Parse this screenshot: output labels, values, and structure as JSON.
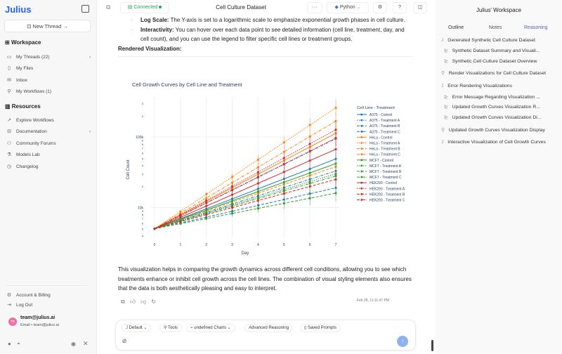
{
  "sidebar": {
    "logo": "Julius",
    "new_thread": "New Thread →",
    "workspace_heading": "Workspace",
    "workspace_items": [
      {
        "label": "My Threads (22)",
        "icon": "chat-icon"
      },
      {
        "label": "My Files",
        "icon": "file-icon"
      },
      {
        "label": "Inbox",
        "icon": "inbox-icon"
      },
      {
        "label": "My Workflows (1)",
        "icon": "workflow-icon"
      }
    ],
    "resources_heading": "Resources",
    "resource_items": [
      {
        "label": "Explore Workflows",
        "icon": "trend-icon"
      },
      {
        "label": "Documentation",
        "icon": "book-icon"
      },
      {
        "label": "Community Forums",
        "icon": "users-icon"
      },
      {
        "label": "Models Lab",
        "icon": "flask-icon"
      },
      {
        "label": "Changelog",
        "icon": "history-icon"
      }
    ],
    "account": "Account & Billing",
    "logout": "Log Out",
    "user_name": "team@julius.ai",
    "user_sub": "Email • team@julius.ai",
    "avatar_initials": "TE",
    "avatar_color": "#f06fa8"
  },
  "topbar": {
    "status": "Connected",
    "status_color": "#22a559",
    "title": "Cell Culture Dataset",
    "more": "···",
    "language": "Python"
  },
  "message": {
    "bullet1_bold": "Log Scale:",
    "bullet1_text": " The Y-axis is set to a logarithmic scale to emphasize exponential growth phases in cell culture.",
    "bullet2_bold": "Interactivity:",
    "bullet2_text": " You can hover over each data point to see detailed information (cell line, treatment, day, and cell count), and you can use the legend to filter specific cell lines or treatment groups.",
    "rendered_heading": "Rendered Visualization:",
    "summary": "This visualization helps in comparing the growth dynamics across different cell conditions, allowing you to see which treatments enhance or inhibit cell growth across the cell lines. The combination of visual styling elements also ensures that the data is both aesthetically pleasing and easy to interpret.",
    "timestamp": "Feb 28, 11:11:47 PM"
  },
  "composer": {
    "default": "Default",
    "tools": "Tools",
    "charts": "undefined Charts",
    "reasoning": "Advanced Reasoning",
    "saved": "Saved Prompts",
    "send_color": "#8fb0f5"
  },
  "right_panel": {
    "title": "Julius' Workspace",
    "tabs": [
      "Outline",
      "Notes",
      "Reasoning"
    ],
    "items": [
      {
        "label": "Generated Synthetic Cell Culture Dataset",
        "level": 0
      },
      {
        "label": "Synthetic Dataset Summary and Visuali...",
        "level": 1
      },
      {
        "label": "Synthetic Cell Culture Dataset Overview",
        "level": 1
      },
      {
        "label": "Render Visualizations for Cell Culture Dataset",
        "level": 0
      },
      {
        "label": "Error Rendering Visualizations",
        "level": 0
      },
      {
        "label": "Error Message Regarding Visualization ...",
        "level": 1
      },
      {
        "label": "Updated Growth Curves Visualization R...",
        "level": 1
      },
      {
        "label": "Updated Growth Curves Visualization Di...",
        "level": 1
      },
      {
        "label": "Updated Growth Curves Visualization Display",
        "level": 0
      },
      {
        "label": "Interactive Visualization of Cell Growth Curves",
        "level": 0
      }
    ]
  },
  "chart_data": {
    "type": "line",
    "title": "Cell Growth Curves by Cell Line and Treatment",
    "xlabel": "Day",
    "ylabel": "Cell Count",
    "x": [
      0,
      1,
      2,
      3,
      4,
      5,
      6,
      7
    ],
    "xlim": [
      0,
      7
    ],
    "ylim": [
      3600,
      330000
    ],
    "yscale": "log",
    "y_ticks": [
      {
        "v": 4000,
        "l": "4"
      },
      {
        "v": 5000,
        "l": "5"
      },
      {
        "v": 6000,
        "l": "6"
      },
      {
        "v": 7000,
        "l": "7"
      },
      {
        "v": 8000,
        "l": "8"
      },
      {
        "v": 9000,
        "l": "9"
      },
      {
        "v": 10000,
        "l": "10k"
      },
      {
        "v": 20000,
        "l": "2"
      },
      {
        "v": 30000,
        "l": "3"
      },
      {
        "v": 40000,
        "l": "4"
      },
      {
        "v": 50000,
        "l": "5"
      },
      {
        "v": 60000,
        "l": "6"
      },
      {
        "v": 70000,
        "l": "7"
      },
      {
        "v": 80000,
        "l": "8"
      },
      {
        "v": 90000,
        "l": "9"
      },
      {
        "v": 100000,
        "l": "100k"
      },
      {
        "v": 200000,
        "l": "2"
      },
      {
        "v": 300000,
        "l": "3"
      }
    ],
    "legend_title": "Cell Line - Treatment",
    "legend": "right",
    "grid": true,
    "series": [
      {
        "name": "A375 - Control",
        "color": "#1f77b4",
        "dash": "solid",
        "values": [
          5000,
          6930,
          9590,
          13280,
          18400,
          25480,
          35300,
          48900
        ]
      },
      {
        "name": "A375 - Treatment A",
        "color": "#1f77b4",
        "dash": "dot",
        "values": [
          5000,
          7640,
          11660,
          17800,
          27180,
          41500,
          63400,
          96800
        ]
      },
      {
        "name": "A375 - Treatment B",
        "color": "#1f77b4",
        "dash": "dash",
        "values": [
          5000,
          6050,
          7320,
          8860,
          10720,
          12970,
          15700,
          19000
        ]
      },
      {
        "name": "A375 - Treatment C",
        "color": "#1f77b4",
        "dash": "dashdot",
        "values": [
          5000,
          6550,
          8570,
          11220,
          14700,
          19250,
          25200,
          33000
        ]
      },
      {
        "name": "HeLa - Control",
        "color": "#ff7f0e",
        "dash": "solid",
        "values": [
          5000,
          7810,
          12190,
          19030,
          29700,
          46370,
          72380,
          113000
        ]
      },
      {
        "name": "HeLa - Treatment A",
        "color": "#ff7f0e",
        "dash": "dot",
        "values": [
          5000,
          8790,
          15460,
          27180,
          47800,
          84000,
          147700,
          259700
        ]
      },
      {
        "name": "HeLa - Treatment B",
        "color": "#ff7f0e",
        "dash": "dash",
        "values": [
          5000,
          6680,
          8920,
          11920,
          15930,
          21280,
          28430,
          37980
        ]
      },
      {
        "name": "HeLa - Treatment C",
        "color": "#ff7f0e",
        "dash": "dashdot",
        "values": [
          5000,
          8260,
          13650,
          22550,
          37250,
          61540,
          101700,
          168000
        ]
      },
      {
        "name": "MCF7 - Control",
        "color": "#2ca02c",
        "dash": "solid",
        "values": [
          5000,
          6780,
          9180,
          12440,
          16860,
          22850,
          30960,
          41950
        ]
      },
      {
        "name": "MCF7 - Treatment A",
        "color": "#2ca02c",
        "dash": "dot",
        "values": [
          5000,
          6460,
          8350,
          10790,
          13940,
          18010,
          23270,
          30060
        ]
      },
      {
        "name": "MCF7 - Treatment B",
        "color": "#2ca02c",
        "dash": "dash",
        "values": [
          5000,
          5900,
          6970,
          8230,
          9720,
          11480,
          13560,
          16010
        ]
      },
      {
        "name": "MCF7 - Treatment C",
        "color": "#2ca02c",
        "dash": "dashdot",
        "values": [
          5000,
          6400,
          8180,
          10470,
          13390,
          17130,
          21910,
          28020
        ]
      },
      {
        "name": "HEK293 - Control",
        "color": "#d62728",
        "dash": "solid",
        "values": [
          5000,
          7240,
          10490,
          15200,
          22030,
          31920,
          46250,
          67020
        ]
      },
      {
        "name": "HEK293 - Treatment A",
        "color": "#d62728",
        "dash": "dot",
        "values": [
          5000,
          7940,
          12600,
          20000,
          31740,
          50380,
          79960,
          126900
        ]
      },
      {
        "name": "HEK293 - Treatment B",
        "color": "#d62728",
        "dash": "dash",
        "values": [
          5000,
          6290,
          7920,
          9970,
          12550,
          15800,
          19890,
          25040
        ]
      },
      {
        "name": "HEK293 - Treatment C",
        "color": "#d62728",
        "dash": "dashdot",
        "values": [
          5000,
          7610,
          11590,
          17650,
          26880,
          40940,
          62350,
          94960
        ]
      }
    ]
  }
}
